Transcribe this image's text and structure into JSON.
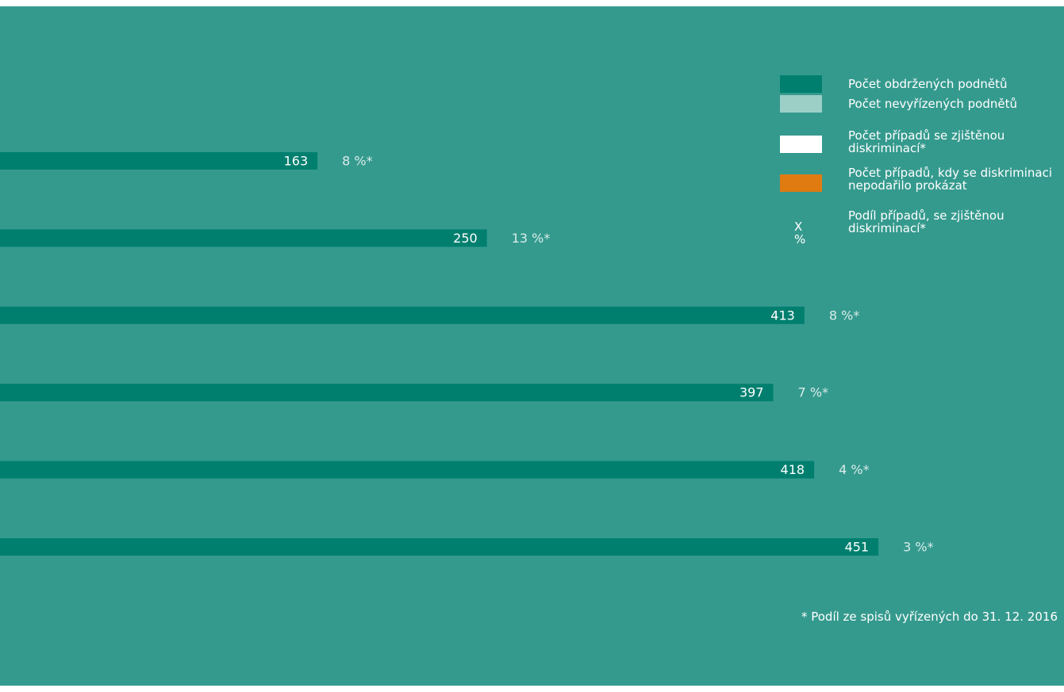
{
  "chart_data": {
    "type": "bar",
    "orientation": "horizontal",
    "series": [
      {
        "name": "Počet obdržených podnětů",
        "values": [
          163,
          250,
          413,
          397,
          418,
          451
        ]
      }
    ],
    "percent_labels": [
      "8 %*",
      "13 %*",
      "8 %*",
      "7 %*",
      "4 %*",
      "3 %*"
    ],
    "grid": false,
    "legend_position": "top-right"
  },
  "legend": [
    {
      "label": "Počet obdržených podnětů",
      "color": "#007f6f"
    },
    {
      "label": "Počet nevyřízených podnětů",
      "color": "#9ccfc6"
    },
    {
      "label": "Počet případů se zjištěnou diskriminací*",
      "color": "#ffffff"
    },
    {
      "label": "Počet případů, kdy se diskriminaci nepodařilo prokázat",
      "color": "#e07b12"
    },
    {
      "label": "Podíl případů, se zjištěnou diskriminací*",
      "symbol": "X %"
    }
  ],
  "footnote": "* Podíl ze spisů vyřízených do 31. 12. 2016",
  "colors": {
    "background": "#359a8e",
    "bar": "#007f6f",
    "value_label": "#ffffff",
    "percent_label": "#d8ece9"
  }
}
